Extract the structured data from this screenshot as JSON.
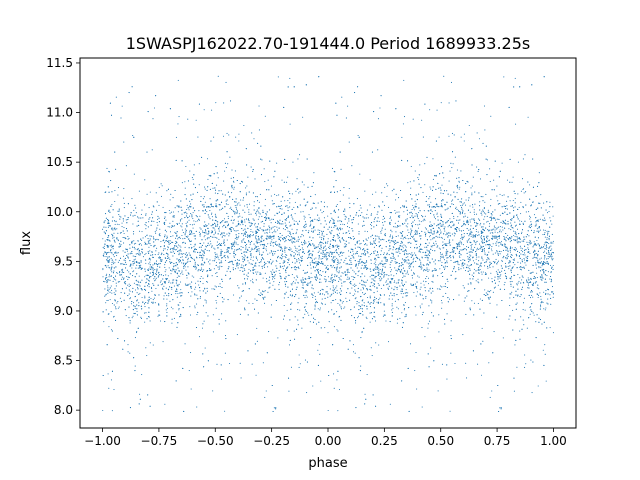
{
  "chart_data": {
    "type": "scatter",
    "title": "1SWASPJ162022.70-191444.0 Period 1689933.25s",
    "xlabel": "phase",
    "ylabel": "flux",
    "xlim": [
      -1.1,
      1.1
    ],
    "ylim": [
      7.82,
      11.55
    ],
    "xticks": [
      -1.0,
      -0.75,
      -0.5,
      -0.25,
      0.0,
      0.25,
      0.5,
      0.75,
      1.0
    ],
    "xtick_labels": [
      "−1.00",
      "−0.75",
      "−0.50",
      "−0.25",
      "0.00",
      "0.25",
      "0.50",
      "0.75",
      "1.00"
    ],
    "yticks": [
      8.0,
      8.5,
      9.0,
      9.5,
      10.0,
      10.5,
      11.0,
      11.5
    ],
    "ytick_labels": [
      "8.0",
      "8.5",
      "9.0",
      "9.5",
      "10.0",
      "10.5",
      "11.0",
      "11.5"
    ],
    "grid": false,
    "legend": "none",
    "marker_color": "#1f77b4",
    "x_data_range": [
      -1.0,
      1.0
    ],
    "phase_mirrored": true,
    "profile": {
      "phase": [
        0.0,
        0.1,
        0.2,
        0.3,
        0.4,
        0.5,
        0.6,
        0.7,
        0.8,
        0.9,
        1.0
      ],
      "median_flux": [
        9.58,
        9.5,
        9.45,
        9.55,
        9.65,
        9.7,
        9.75,
        9.7,
        9.63,
        9.55,
        9.55
      ],
      "core_spread": [
        0.3,
        0.3,
        0.32,
        0.3,
        0.3,
        0.32,
        0.3,
        0.3,
        0.3,
        0.3,
        0.3
      ]
    },
    "flux_extremes": {
      "min": 7.98,
      "max": 11.38
    }
  }
}
